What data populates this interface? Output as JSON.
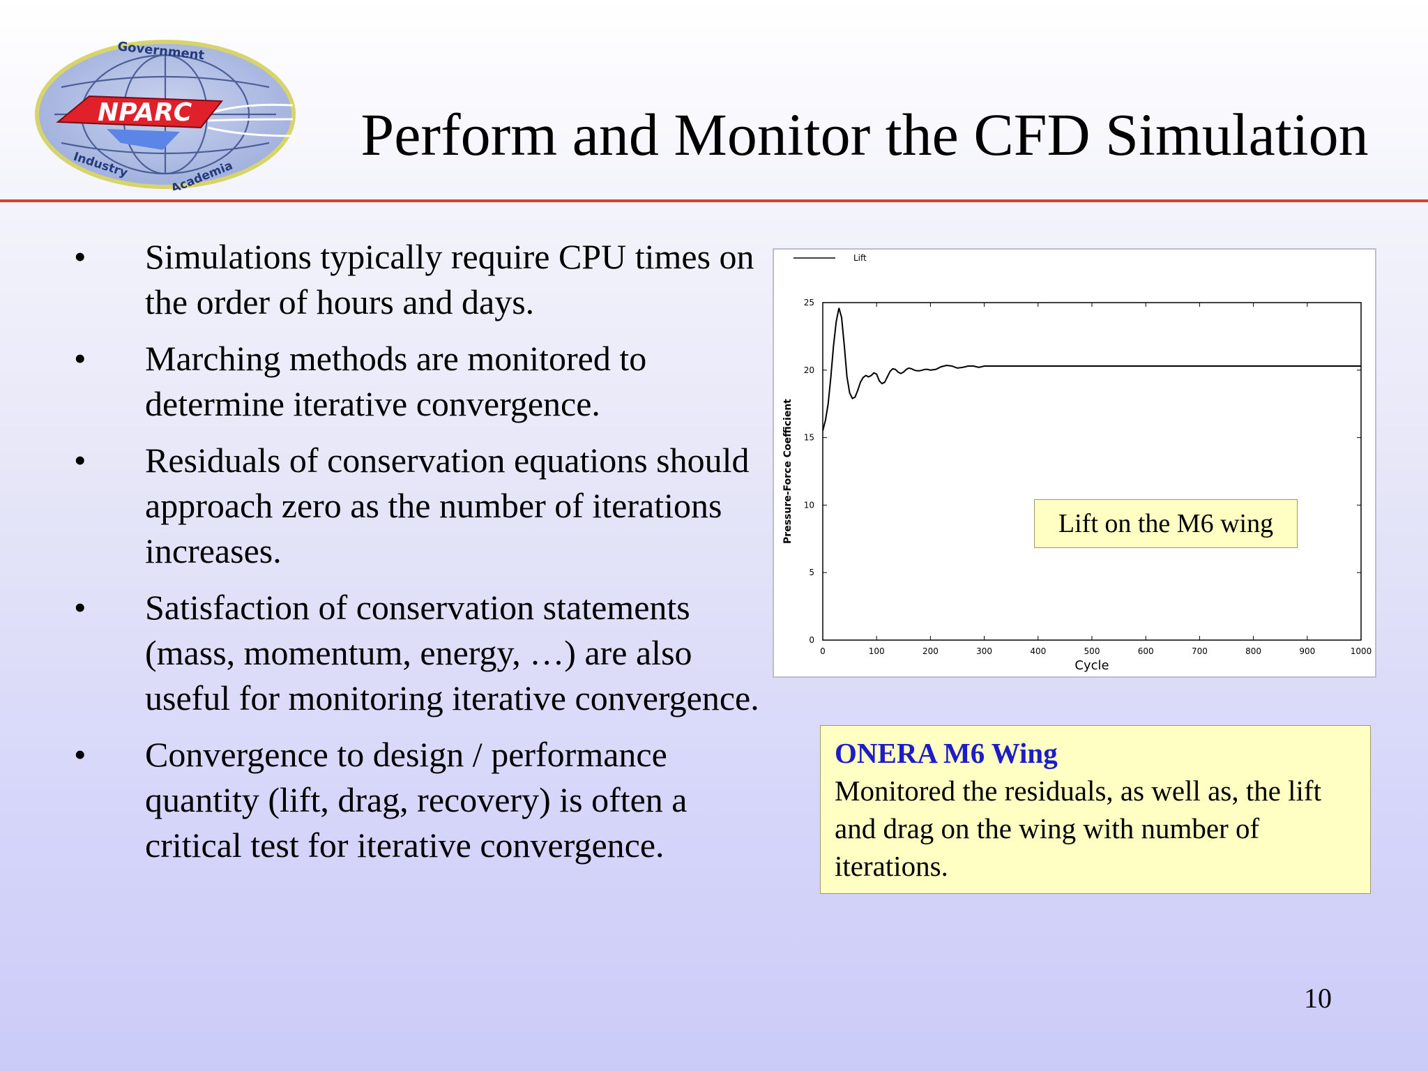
{
  "slide": {
    "title": "Perform and Monitor the CFD Simulation",
    "page_number": "10"
  },
  "logo": {
    "text": "NPARC",
    "ring_top": "Government",
    "ring_bottom_left": "Industry",
    "ring_bottom_right": "Academia"
  },
  "bullets": [
    {
      "marker": "•",
      "text": "Simulations typically require CPU times on the order of hours and days."
    },
    {
      "marker": "•",
      "text": "Marching methods are monitored to determine iterative convergence."
    },
    {
      "marker": "•",
      "text": "Residuals of conservation equations should approach zero as the number of iterations increases."
    },
    {
      "marker": "•",
      "text": "Satisfaction of conservation statements (mass, momentum, energy, …) are also useful for monitoring iterative convergence."
    },
    {
      "marker": "•",
      "text": "Convergence to design / performance quantity (lift, drag, recovery) is often a critical test for iterative convergence."
    }
  ],
  "chart_data": {
    "type": "line",
    "title": "",
    "xlabel": "Cycle",
    "ylabel": "Pressure-Force Coefficient",
    "xlim": [
      0,
      1000
    ],
    "ylim": [
      0,
      25
    ],
    "x_ticks": [
      0,
      100,
      200,
      300,
      400,
      500,
      600,
      700,
      800,
      900,
      1000
    ],
    "y_ticks": [
      0,
      5,
      10,
      15,
      20,
      25
    ],
    "legend_position": "top-left",
    "grid": false,
    "series": [
      {
        "name": "Lift",
        "x": [
          0,
          5,
          10,
          15,
          20,
          25,
          30,
          35,
          40,
          45,
          50,
          55,
          60,
          65,
          70,
          75,
          80,
          85,
          90,
          95,
          100,
          105,
          110,
          115,
          120,
          125,
          130,
          135,
          140,
          145,
          150,
          155,
          160,
          165,
          170,
          175,
          180,
          185,
          190,
          195,
          200,
          210,
          220,
          230,
          240,
          250,
          260,
          270,
          280,
          290,
          300,
          350,
          400,
          500,
          600,
          700,
          800,
          900,
          1000
        ],
        "y": [
          15.5,
          16.3,
          17.5,
          19.5,
          21.8,
          23.6,
          24.6,
          23.9,
          21.8,
          19.5,
          18.3,
          17.9,
          18.0,
          18.5,
          19.1,
          19.45,
          19.6,
          19.5,
          19.6,
          19.8,
          19.7,
          19.2,
          19.0,
          19.1,
          19.5,
          19.9,
          20.1,
          20.05,
          19.85,
          19.75,
          19.85,
          20.05,
          20.15,
          20.1,
          20.0,
          19.95,
          19.95,
          20.0,
          20.05,
          20.05,
          20.0,
          20.05,
          20.25,
          20.35,
          20.3,
          20.15,
          20.2,
          20.3,
          20.3,
          20.2,
          20.3,
          20.3,
          20.3,
          20.3,
          20.3,
          20.3,
          20.3,
          20.3,
          20.3
        ]
      }
    ]
  },
  "chart_note": "Lift on the M6 wing",
  "info_box": {
    "title": "ONERA M6 Wing",
    "body": "Monitored the residuals, as well as, the lift and drag on the wing with number of iterations."
  },
  "colors": {
    "title_rule": "#e23a2c",
    "note_fill": "#ffffc4",
    "info_title": "#1c1cc8"
  }
}
